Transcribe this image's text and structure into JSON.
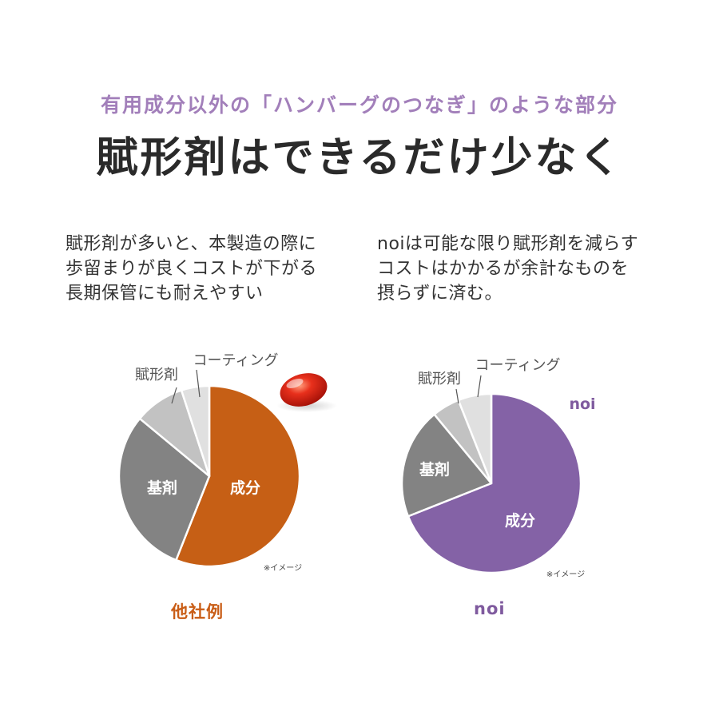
{
  "header": {
    "subtitle": "有用成分以外の「ハンバーグのつなぎ」のような部分",
    "title": "賦形剤はできるだけ少なく"
  },
  "descriptions": {
    "left": [
      "賦形剤が多いと、本製造の際に",
      "歩留まりが良くコストが下がる",
      "長期保管にも耐えやすい"
    ],
    "right": [
      "noiは可能な限り賦形剤を減らす",
      "コストはかかるが余計なものを",
      "摂らずに済む。"
    ]
  },
  "chart_data": [
    {
      "type": "pie",
      "caption": "他社例",
      "note": "※イメージ",
      "slices": [
        {
          "label": "成分",
          "value": 56,
          "color": "#c65f15"
        },
        {
          "label": "基剤",
          "value": 30,
          "color": "#838383"
        },
        {
          "label": "賦形剤",
          "value": 9,
          "color": "#c2c2c2"
        },
        {
          "label": "コーティング",
          "value": 5,
          "color": "#e0e0e0"
        }
      ]
    },
    {
      "type": "pie",
      "caption": "noi",
      "brand_label": "noi",
      "note": "※イメージ",
      "slices": [
        {
          "label": "成分",
          "value": 69,
          "color": "#8462a6"
        },
        {
          "label": "基剤",
          "value": 20,
          "color": "#838383"
        },
        {
          "label": "賦形剤",
          "value": 5,
          "color": "#c2c2c2"
        },
        {
          "label": "コーティング",
          "value": 6,
          "color": "#e0e0e0"
        }
      ]
    }
  ]
}
